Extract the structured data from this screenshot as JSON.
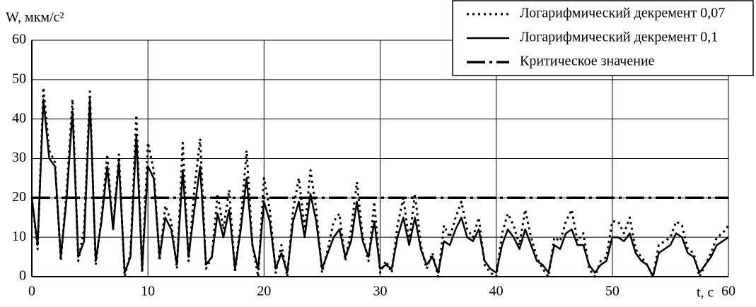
{
  "chart_data": {
    "type": "line",
    "y_label": "W, мкм/с²",
    "x_label": "t, с",
    "x": [
      0,
      0.5,
      1,
      1.5,
      2,
      2.5,
      3,
      3.5,
      4,
      4.5,
      5,
      5.5,
      6,
      6.5,
      7,
      7.5,
      8,
      8.5,
      9,
      9.5,
      10,
      10.5,
      11,
      11.5,
      12,
      12.5,
      13,
      13.5,
      14,
      14.5,
      15,
      15.5,
      16,
      16.5,
      17,
      17.5,
      18,
      18.5,
      19,
      19.5,
      20,
      20.5,
      21,
      21.5,
      22,
      22.5,
      23,
      23.5,
      24,
      24.5,
      25,
      25.5,
      26,
      26.5,
      27,
      27.5,
      28,
      28.5,
      29,
      29.5,
      30,
      30.5,
      31,
      31.5,
      32,
      32.5,
      33,
      33.5,
      34,
      34.5,
      35,
      35.5,
      36,
      36.5,
      37,
      37.5,
      38,
      38.5,
      39,
      39.5,
      40,
      40.5,
      41,
      41.5,
      42,
      42.5,
      43,
      43.5,
      44,
      44.5,
      45,
      45.5,
      46,
      46.5,
      47,
      47.5,
      48,
      48.5,
      49,
      49.5,
      50,
      50.5,
      51,
      51.5,
      52,
      52.5,
      53,
      53.5,
      54,
      54.5,
      55,
      55.5,
      56,
      56.5,
      57,
      57.5,
      58,
      58.5,
      59,
      59.5,
      60
    ],
    "series": [
      {
        "name": "Логарифмический декремент 0,07",
        "color": "#000000",
        "dash": "dot",
        "values": [
          20,
          7,
          48,
          32,
          29,
          4,
          22,
          45,
          4,
          12,
          47,
          3,
          15,
          31,
          12,
          31,
          0,
          6,
          41,
          1,
          34,
          27,
          4,
          18,
          14,
          2,
          34,
          4,
          22,
          35,
          2,
          5,
          21,
          12,
          22,
          1,
          14,
          32,
          8,
          0,
          25,
          17,
          1,
          8,
          0,
          17,
          25,
          12,
          27,
          17,
          1,
          7,
          14,
          16,
          4,
          12,
          24,
          10,
          4,
          19,
          1,
          4,
          1,
          13,
          20,
          9,
          21,
          8,
          2,
          6,
          0,
          13,
          10,
          15,
          19,
          12,
          10,
          15,
          3,
          1,
          0,
          11,
          16,
          13,
          8,
          17,
          10,
          5,
          2,
          0,
          10,
          9,
          14,
          17,
          9,
          11,
          2,
          0,
          4,
          5,
          14,
          14,
          11,
          15,
          7,
          5,
          3,
          0,
          8,
          9,
          10,
          14,
          13,
          7,
          6,
          0,
          3,
          6,
          10,
          11,
          13
        ]
      },
      {
        "name": "Логарифмический декремент 0,1",
        "color": "#000000",
        "dash": "solid",
        "values": [
          20,
          8,
          45,
          30,
          28,
          5,
          20,
          42,
          5,
          9,
          45,
          4,
          14,
          28,
          12,
          29,
          1,
          5,
          36,
          2,
          28,
          25,
          5,
          15,
          12,
          3,
          27,
          5,
          17,
          28,
          3,
          5,
          16,
          10,
          17,
          2,
          12,
          25,
          8,
          2,
          19,
          14,
          2,
          6,
          1,
          14,
          19,
          10,
          21,
          14,
          2,
          6,
          10,
          12,
          5,
          9,
          19,
          9,
          5,
          14,
          2,
          3,
          2,
          10,
          15,
          8,
          15,
          7,
          3,
          5,
          1,
          9,
          8,
          12,
          15,
          10,
          9,
          12,
          4,
          2,
          1,
          8,
          12,
          10,
          7,
          12,
          8,
          4,
          3,
          1,
          8,
          7,
          11,
          12,
          8,
          8,
          3,
          1,
          3,
          4,
          10,
          10,
          9,
          11,
          6,
          4,
          3,
          0,
          6,
          7,
          8,
          11,
          10,
          6,
          5,
          1,
          3,
          5,
          8,
          9,
          10
        ]
      },
      {
        "name": "Критическое значение",
        "color": "#000000",
        "dash": "dashdot",
        "x": [
          0,
          60
        ],
        "values": [
          20,
          20
        ]
      }
    ],
    "xlim": [
      0,
      60
    ],
    "xticks": [
      0,
      10,
      20,
      30,
      40,
      50,
      60
    ],
    "ylim": [
      0,
      60
    ],
    "yticks": [
      0,
      10,
      20,
      30,
      40,
      50,
      60
    ],
    "grid": true,
    "legend": "upper right"
  }
}
